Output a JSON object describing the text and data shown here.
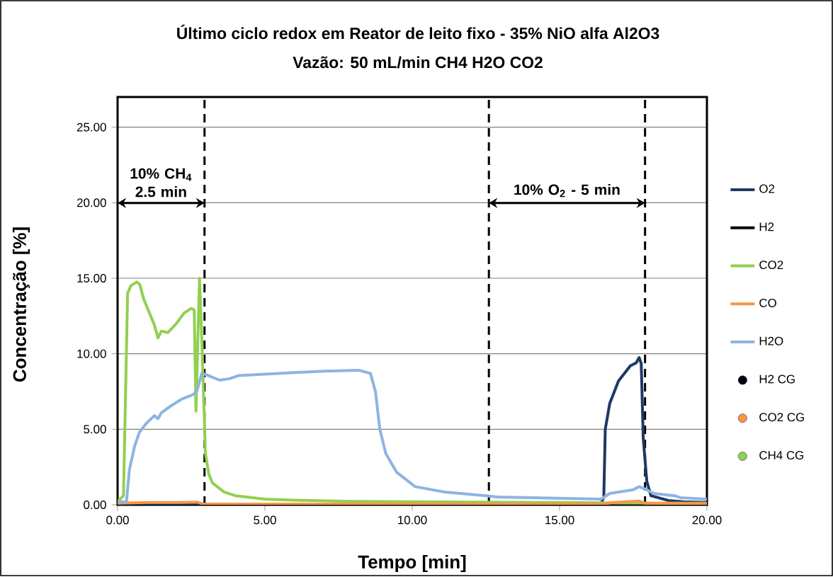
{
  "chart_data": {
    "type": "line",
    "title": "Último ciclo redox em Reator de leito fixo - 35% NiO alfa Al2O3",
    "subtitle": "Vazão: 50 mL/min CH4 H2O CO2",
    "xlabel": "Tempo [min]",
    "ylabel": "Concentração [%]",
    "xlim": [
      0,
      20
    ],
    "ylim": [
      0,
      27
    ],
    "xticks": [
      {
        "value": 0,
        "label": "0.00"
      },
      {
        "value": 5,
        "label": "5.00"
      },
      {
        "value": 10,
        "label": "10.00"
      },
      {
        "value": 15,
        "label": "15.00"
      },
      {
        "value": 20,
        "label": "20.00"
      }
    ],
    "yticks": [
      {
        "value": 0,
        "label": "0.00"
      },
      {
        "value": 5,
        "label": "5.00"
      },
      {
        "value": 10,
        "label": "10.00"
      },
      {
        "value": 15,
        "label": "15.00"
      },
      {
        "value": 20,
        "label": "20.00"
      },
      {
        "value": 25,
        "label": "25.00"
      }
    ],
    "grid": "y",
    "legend": "right",
    "series": [
      {
        "name": "O2",
        "color": "#1f3864",
        "x": [
          0,
          16.4,
          16.5,
          16.55,
          16.7,
          17.0,
          17.4,
          17.6,
          17.7,
          17.77,
          17.84,
          17.96,
          18.1,
          18.7,
          19.2,
          20
        ],
        "values": [
          0,
          0.05,
          0.5,
          5.0,
          6.7,
          8.2,
          9.2,
          9.4,
          9.75,
          9.35,
          4.35,
          1.55,
          0.6,
          0.28,
          0.2,
          0.15
        ]
      },
      {
        "name": "H2",
        "color": "#000000"
      },
      {
        "name": "CO2",
        "color": "#92d050",
        "x": [
          0,
          0.2,
          0.34,
          0.45,
          0.65,
          0.75,
          0.89,
          1.06,
          1.25,
          1.37,
          1.49,
          1.7,
          1.95,
          2.07,
          2.26,
          2.5,
          2.6,
          2.66,
          2.78,
          2.86,
          2.98,
          3.1,
          3.22,
          3.62,
          4.0,
          5.0,
          6.0,
          8.0,
          10.0,
          12.0,
          15.0,
          17.0,
          20.0
        ],
        "values": [
          0.2,
          0.6,
          14.0,
          14.5,
          14.75,
          14.6,
          13.6,
          12.8,
          11.9,
          11.05,
          11.5,
          11.4,
          11.9,
          12.2,
          12.7,
          13.0,
          12.9,
          6.2,
          15.0,
          10.9,
          3.4,
          2.0,
          1.45,
          0.84,
          0.6,
          0.37,
          0.3,
          0.22,
          0.2,
          0.17,
          0.15,
          0.12,
          0.1
        ]
      },
      {
        "name": "CO",
        "color": "#f79646",
        "x": [
          0,
          1.0,
          2.0,
          2.7,
          2.9,
          5.0,
          10.0,
          16.5,
          16.8,
          17.7,
          17.9,
          20
        ],
        "values": [
          0.1,
          0.15,
          0.15,
          0.18,
          0.05,
          0.05,
          0.05,
          0.05,
          0.15,
          0.25,
          0.1,
          0.08
        ]
      },
      {
        "name": "H2O",
        "color": "#8db4e2",
        "x": [
          0,
          0.3,
          0.4,
          0.58,
          0.74,
          0.98,
          1.25,
          1.37,
          1.49,
          1.85,
          2.18,
          2.57,
          2.7,
          2.86,
          3.06,
          3.46,
          3.8,
          4.1,
          5.0,
          6.0,
          7.0,
          8.2,
          8.58,
          8.75,
          8.9,
          9.1,
          9.47,
          10.1,
          11.1,
          12.5,
          12.9,
          16.4,
          16.7,
          17.5,
          17.7,
          17.95,
          18.2,
          18.9,
          19.1,
          20
        ],
        "values": [
          0.2,
          0.2,
          2.3,
          3.9,
          4.8,
          5.4,
          5.9,
          5.7,
          6.1,
          6.6,
          7.0,
          7.3,
          7.6,
          8.7,
          8.57,
          8.25,
          8.35,
          8.55,
          8.65,
          8.75,
          8.85,
          8.9,
          8.7,
          7.5,
          5.0,
          3.4,
          2.15,
          1.2,
          0.84,
          0.6,
          0.52,
          0.37,
          0.75,
          1.0,
          1.2,
          1.0,
          0.75,
          0.6,
          0.47,
          0.37
        ]
      },
      {
        "name": "H2 CG",
        "type": "scatter",
        "color": "#000000"
      },
      {
        "name": "CO2 CG",
        "type": "scatter",
        "color": "#f79646"
      },
      {
        "name": "CH4 CG",
        "type": "scatter",
        "color": "#92d050"
      }
    ],
    "ref_lines": [
      {
        "axis": "x",
        "value": 2.95,
        "color": "#000000",
        "line_style": "dashed"
      },
      {
        "axis": "x",
        "value": 12.6,
        "color": "#000000",
        "line_style": "dashed"
      },
      {
        "axis": "x",
        "value": 17.9,
        "color": "#000000",
        "line_style": "dashed"
      }
    ],
    "annotations": [
      "10% CH$_{4}$ 2.5 min",
      "10% O$_{2}$ - 5 min"
    ]
  }
}
